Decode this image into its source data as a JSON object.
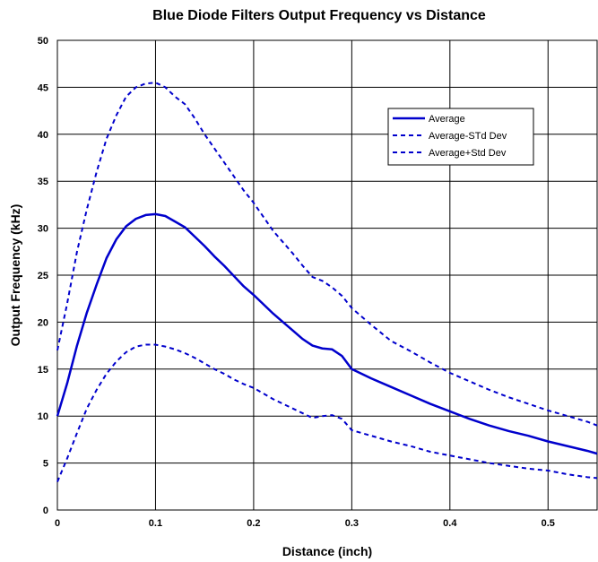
{
  "chart_data": {
    "type": "line",
    "title": "Blue Diode Filters Output Frequency vs Distance",
    "xlabel": "Distance (inch)",
    "ylabel": "Output Frequency (kHz)",
    "xlim": [
      0,
      0.55
    ],
    "ylim": [
      0,
      50
    ],
    "xticks": [
      0,
      0.1,
      0.2,
      0.3,
      0.4,
      0.5
    ],
    "xtick_labels": [
      "0",
      "0.1",
      "0.2",
      "0.3",
      "0.4",
      "0.5"
    ],
    "yticks": [
      0,
      5,
      10,
      15,
      20,
      25,
      30,
      35,
      40,
      45,
      50
    ],
    "ytick_labels": [
      "0",
      "5",
      "10",
      "15",
      "20",
      "25",
      "30",
      "35",
      "40",
      "45",
      "50"
    ],
    "grid": true,
    "legend_position": "top-right",
    "series": [
      {
        "name": "Average",
        "style": "solid",
        "color": "#0000CC",
        "x": [
          0,
          0.01,
          0.02,
          0.03,
          0.04,
          0.05,
          0.06,
          0.07,
          0.08,
          0.09,
          0.1,
          0.11,
          0.12,
          0.13,
          0.14,
          0.15,
          0.16,
          0.17,
          0.18,
          0.19,
          0.2,
          0.21,
          0.22,
          0.23,
          0.24,
          0.25,
          0.26,
          0.27,
          0.28,
          0.29,
          0.3,
          0.32,
          0.34,
          0.36,
          0.38,
          0.4,
          0.42,
          0.44,
          0.46,
          0.48,
          0.5,
          0.52,
          0.54,
          0.55
        ],
        "y": [
          10,
          13.5,
          17.5,
          21,
          24,
          26.8,
          28.8,
          30.2,
          31,
          31.4,
          31.5,
          31.3,
          30.7,
          30.1,
          29.1,
          28.1,
          27.0,
          26.0,
          24.9,
          23.8,
          22.9,
          21.9,
          20.9,
          20.0,
          19.1,
          18.2,
          17.5,
          17.2,
          17.1,
          16.4,
          15.0,
          14.0,
          13.1,
          12.2,
          11.3,
          10.5,
          9.7,
          9.0,
          8.4,
          7.9,
          7.3,
          6.8,
          6.3,
          6.0
        ]
      },
      {
        "name": "Average-STd Dev",
        "style": "dashed",
        "color": "#0000CC",
        "x": [
          0,
          0.01,
          0.02,
          0.03,
          0.04,
          0.05,
          0.06,
          0.07,
          0.08,
          0.09,
          0.1,
          0.11,
          0.12,
          0.13,
          0.14,
          0.15,
          0.16,
          0.17,
          0.18,
          0.19,
          0.2,
          0.21,
          0.22,
          0.23,
          0.24,
          0.25,
          0.26,
          0.27,
          0.28,
          0.29,
          0.3,
          0.32,
          0.34,
          0.36,
          0.38,
          0.4,
          0.42,
          0.44,
          0.46,
          0.48,
          0.5,
          0.52,
          0.54,
          0.55
        ],
        "y": [
          3,
          5.5,
          8.2,
          10.8,
          12.8,
          14.5,
          15.8,
          16.8,
          17.4,
          17.6,
          17.6,
          17.4,
          17.1,
          16.7,
          16.2,
          15.6,
          15.0,
          14.5,
          13.9,
          13.4,
          13.0,
          12.4,
          11.8,
          11.3,
          10.8,
          10.3,
          9.8,
          10.0,
          10.1,
          9.7,
          8.5,
          7.9,
          7.3,
          6.8,
          6.2,
          5.8,
          5.4,
          5.0,
          4.7,
          4.4,
          4.2,
          3.8,
          3.5,
          3.4
        ]
      },
      {
        "name": "Average+Std Dev",
        "style": "dashed",
        "color": "#0000CC",
        "x": [
          0,
          0.01,
          0.02,
          0.03,
          0.04,
          0.05,
          0.06,
          0.07,
          0.08,
          0.09,
          0.1,
          0.11,
          0.12,
          0.13,
          0.14,
          0.15,
          0.16,
          0.17,
          0.18,
          0.19,
          0.2,
          0.21,
          0.22,
          0.23,
          0.24,
          0.25,
          0.26,
          0.27,
          0.28,
          0.29,
          0.3,
          0.32,
          0.34,
          0.36,
          0.38,
          0.4,
          0.42,
          0.44,
          0.46,
          0.48,
          0.5,
          0.52,
          0.54,
          0.55
        ],
        "y": [
          17,
          22,
          27.5,
          32,
          36,
          39.5,
          42,
          44,
          45,
          45.4,
          45.5,
          45.0,
          44.0,
          43.2,
          41.7,
          40.0,
          38.5,
          37.0,
          35.5,
          34.0,
          32.7,
          31.2,
          29.7,
          28.5,
          27.3,
          26.0,
          24.8,
          24.4,
          23.7,
          22.8,
          21.5,
          19.7,
          18.0,
          16.9,
          15.7,
          14.6,
          13.7,
          12.8,
          12.0,
          11.3,
          10.6,
          10.0,
          9.4,
          9.0
        ]
      }
    ]
  }
}
